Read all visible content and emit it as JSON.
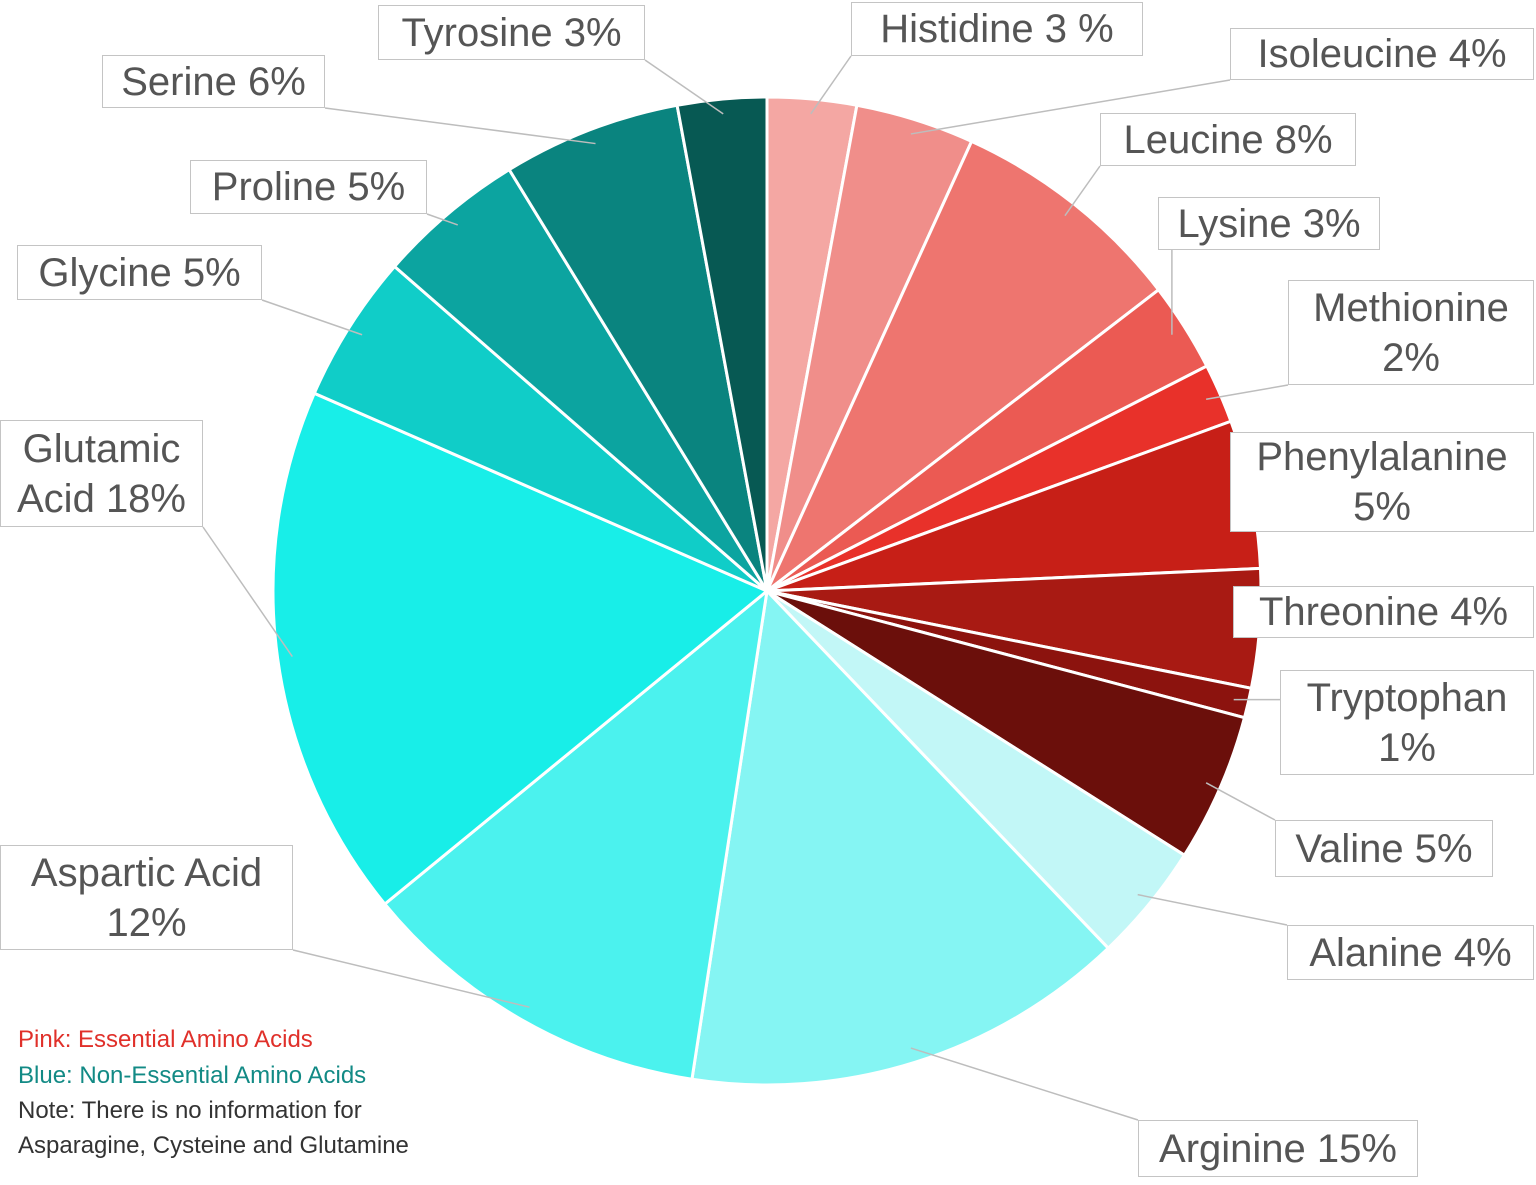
{
  "chart_data": {
    "type": "pie",
    "categories": [
      "Histidine",
      "Isoleucine",
      "Leucine",
      "Lysine",
      "Methionine",
      "Phenylalanine",
      "Threonine",
      "Tryptophan",
      "Valine",
      "Alanine",
      "Arginine",
      "Aspartic Acid",
      "Glutamic Acid",
      "Glycine",
      "Proline",
      "Serine",
      "Tyrosine"
    ],
    "values": [
      3,
      4,
      8,
      3,
      2,
      5,
      4,
      1,
      5,
      4,
      15,
      12,
      18,
      5,
      5,
      6,
      3
    ],
    "value_labels": [
      "3 %",
      "4%",
      "8%",
      "3%",
      "2%",
      "5%",
      "4%",
      "1%",
      "5%",
      "4%",
      "15%",
      "12%",
      "18%",
      "5%",
      "5%",
      "6%",
      "3%"
    ],
    "colors": [
      "#f4a7a3",
      "#f08e8a",
      "#ee756f",
      "#eb5a53",
      "#e8312a",
      "#c71f17",
      "#a81a13",
      "#8c130e",
      "#6b0f0b",
      "#c2f7f7",
      "#85f5f3",
      "#4bf2ee",
      "#18eee8",
      "#10cdc8",
      "#0ca4a0",
      "#0a847f",
      "#075953"
    ],
    "annotations": [
      "Pink: Essential Amino Acids",
      "Blue: Non-Essential Amino Acids",
      "Note: There is no information for Asparagine, Cysteine and Glutamine"
    ]
  }
}
